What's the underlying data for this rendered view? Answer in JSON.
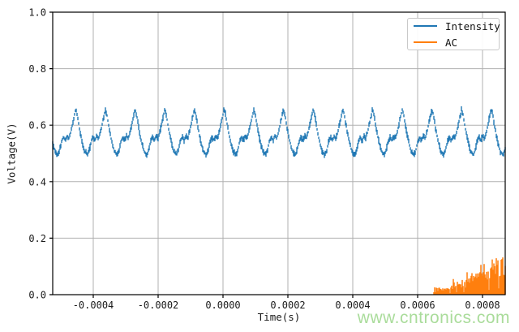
{
  "figure": {
    "background": "#ffffff",
    "watermark": {
      "text": "www.cntronics.com",
      "color": "#aadc9b"
    }
  },
  "legend": {
    "position": "upper right",
    "entries": [
      {
        "label": "Intensity",
        "color": "#1f77b4"
      },
      {
        "label": "AC",
        "color": "#ff7f0e"
      }
    ]
  },
  "chart_data": {
    "type": "line",
    "title": "",
    "xlabel": "Time(s)",
    "ylabel": "Voltage(V)",
    "xlim": [
      -0.000525,
      0.00087
    ],
    "ylim": [
      0,
      1
    ],
    "grid": true,
    "grid_color": "#b0b0b0",
    "spine_color": "#000000",
    "tick_label_color": "#1a1a1a",
    "xticks": {
      "values": [
        -0.0004,
        -0.0002,
        0.0,
        0.0002,
        0.0004,
        0.0006,
        0.0008
      ],
      "labels": [
        "-0.0004",
        "-0.0002",
        "0.0000",
        "0.0002",
        "0.0004",
        "0.0006",
        "0.0008"
      ]
    },
    "yticks": {
      "values": [
        0.0,
        0.2,
        0.4,
        0.6,
        0.8,
        1.0
      ],
      "labels": [
        "0.0",
        "0.2",
        "0.4",
        "0.6",
        "0.8",
        "1.0"
      ]
    },
    "seed": 12,
    "series": [
      {
        "name": "Intensity",
        "color": "#1f77b4",
        "description": "noisy periodic waveform (~11 kHz) oscillating between ~0.48 V and ~0.67 V with a mid-rise shoulder each cycle",
        "period_s": 9.15e-05,
        "trough_time_s": -0.0004175,
        "mean_v": 0.575,
        "peak_v": 0.655,
        "trough_v": 0.495,
        "noise_band_v": [
          0.004,
          0.014
        ],
        "cycle_shape": [
          [
            0.0,
            0.495
          ],
          [
            0.06,
            0.512
          ],
          [
            0.13,
            0.545
          ],
          [
            0.19,
            0.558
          ],
          [
            0.25,
            0.546
          ],
          [
            0.31,
            0.562
          ],
          [
            0.37,
            0.553
          ],
          [
            0.44,
            0.578
          ],
          [
            0.52,
            0.618
          ],
          [
            0.6,
            0.655
          ],
          [
            0.65,
            0.638
          ],
          [
            0.72,
            0.592
          ],
          [
            0.8,
            0.548
          ],
          [
            0.9,
            0.508
          ],
          [
            1.0,
            0.495
          ]
        ]
      },
      {
        "name": "AC",
        "color": "#ff7f0e",
        "description": "dense burst of vertical spikes rising from 0 V beginning at ~0.00065 s and growing toward the right edge",
        "segments": [
          {
            "t0": 0.00065,
            "t1": 0.000665,
            "base": 0.012,
            "spike": 0.025
          },
          {
            "t0": 0.000665,
            "t1": 0.000695,
            "base": 0.02,
            "spike": 0.05
          },
          {
            "t0": 0.000695,
            "t1": 0.00071,
            "base": 0.022,
            "spike": 0.035
          },
          {
            "t0": 0.00071,
            "t1": 0.00075,
            "base": 0.034,
            "spike": 0.055
          },
          {
            "t0": 0.00075,
            "t1": 0.000787,
            "base": 0.052,
            "spike": 0.075
          },
          {
            "t0": 0.000787,
            "t1": 0.000825,
            "base": 0.068,
            "spike": 0.1
          },
          {
            "t0": 0.000825,
            "t1": 0.00087,
            "base": 0.088,
            "spike": 0.12
          }
        ]
      }
    ]
  }
}
